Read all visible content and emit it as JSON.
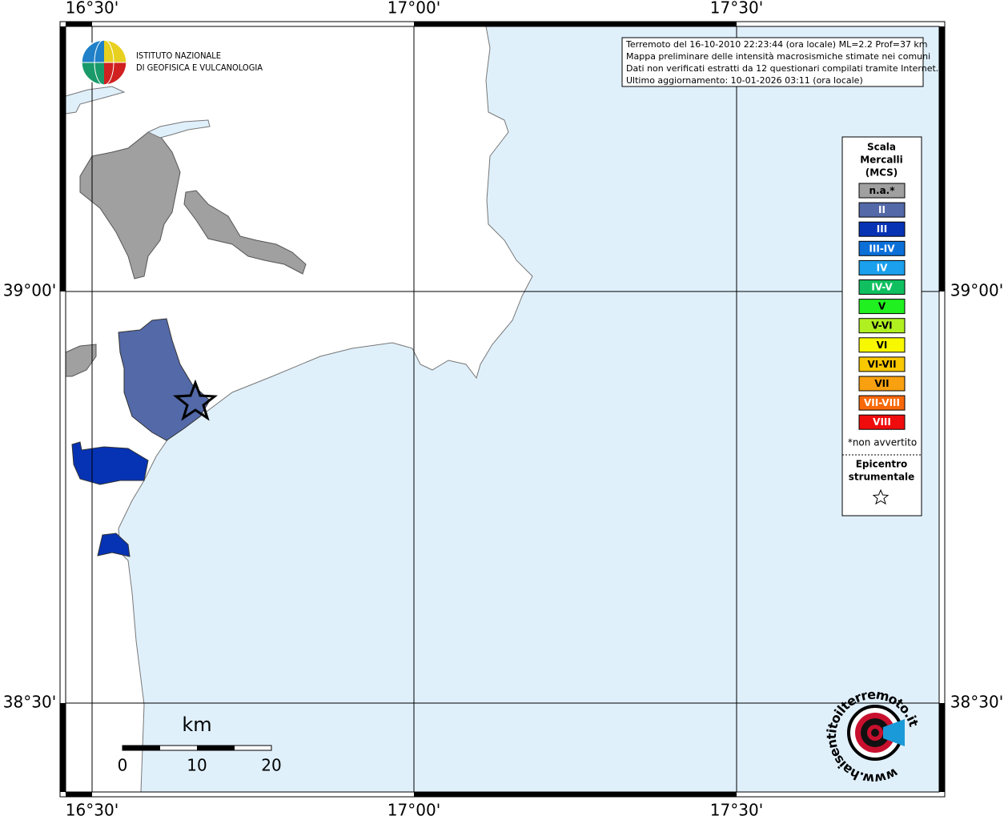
{
  "map": {
    "lon_labels": [
      "16°30'",
      "17°00'",
      "17°30'"
    ],
    "lat_labels": [
      "39°00'",
      "38°30'"
    ],
    "info": [
      "Terremoto del 16-10-2010 22:23:44 (ora locale) ML=2.2 Prof=37 km",
      "Mappa preliminare delle intensità macrosismiche stimate nei comuni",
      "Dati non verificati estratti da 12 questionari compilati tramite Internet.",
      "Ultimo aggiornamento: 10-01-2026 03:11 (ora locale)"
    ],
    "logo": [
      "ISTITUTO NAZIONALE",
      "DI GEOFISICA E VULCANOLOGIA"
    ],
    "legend": {
      "title": [
        "Scala",
        "Mercalli",
        "(MCS)"
      ],
      "items": [
        {
          "label": "n.a.*",
          "color": "#a0a0a0"
        },
        {
          "label": "II",
          "color": "#5369a8"
        },
        {
          "label": "III",
          "color": "#0632b4"
        },
        {
          "label": "III-IV",
          "color": "#0b6fd8"
        },
        {
          "label": "IV",
          "color": "#1aa0ec"
        },
        {
          "label": "IV-V",
          "color": "#10c060"
        },
        {
          "label": "V",
          "color": "#20f020"
        },
        {
          "label": "V-VI",
          "color": "#b0f020"
        },
        {
          "label": "VI",
          "color": "#f8f800"
        },
        {
          "label": "VI-VII",
          "color": "#f8c800"
        },
        {
          "label": "VII",
          "color": "#f8a010"
        },
        {
          "label": "VII-VIII",
          "color": "#f86808"
        },
        {
          "label": "VIII",
          "color": "#f00c0c"
        }
      ],
      "note": "*non avvertito",
      "epicenter": [
        "Epicentro",
        "strumentale"
      ]
    },
    "scale_bar": {
      "unit": "km",
      "labels": [
        "0",
        "10",
        "20"
      ]
    },
    "watermark": "www.haisentitoilterremoto.it"
  }
}
